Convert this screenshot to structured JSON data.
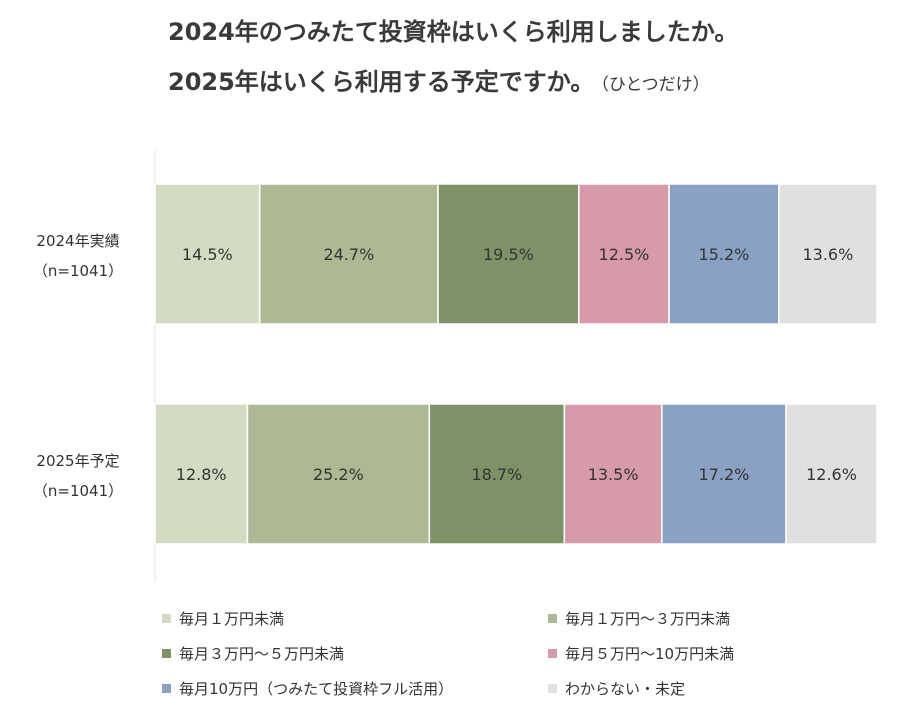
{
  "title": {
    "line1": "2024年のつみたて投資枠はいくら利用しましたか。",
    "line2": "2025年はいくら利用する予定ですか。",
    "note": "（ひとつだけ）"
  },
  "chart_data": {
    "type": "bar",
    "orientation": "horizontal",
    "stacked": "100%",
    "categories": [
      {
        "label": "2024年実績",
        "sublabel": "（n=1041）"
      },
      {
        "label": "2025年予定",
        "sublabel": "（n=1041）"
      }
    ],
    "series": [
      {
        "name": "毎月１万円未満",
        "color": "#d3dbc3",
        "values": [
          14.5,
          12.8
        ],
        "labels": [
          "14.5%",
          "12.8%"
        ]
      },
      {
        "name": "毎月１万円～３万円未満",
        "color": "#adb994",
        "values": [
          24.7,
          25.2
        ],
        "labels": [
          "24.7%",
          "25.2%"
        ]
      },
      {
        "name": "毎月３万円～５万円未満",
        "color": "#7e9267",
        "values": [
          19.5,
          18.7
        ],
        "labels": [
          "19.5%",
          "18.7%"
        ]
      },
      {
        "name": "毎月５万円～10万円未満",
        "color": "#d69aaa",
        "values": [
          12.5,
          13.5
        ],
        "labels": [
          "12.5%",
          "13.5%"
        ]
      },
      {
        "name": "毎月10万円（つみたて投資枠フル活用）",
        "color": "#8aa1c4",
        "values": [
          15.2,
          17.2
        ],
        "labels": [
          "15.2%",
          "17.2%"
        ]
      },
      {
        "name": "わからない・未定",
        "color": "#e0e0e0",
        "values": [
          13.6,
          12.6
        ],
        "labels": [
          "13.6%",
          "12.6%"
        ]
      }
    ],
    "xlim": [
      0,
      100
    ],
    "grid": false,
    "legend": "bottom"
  }
}
